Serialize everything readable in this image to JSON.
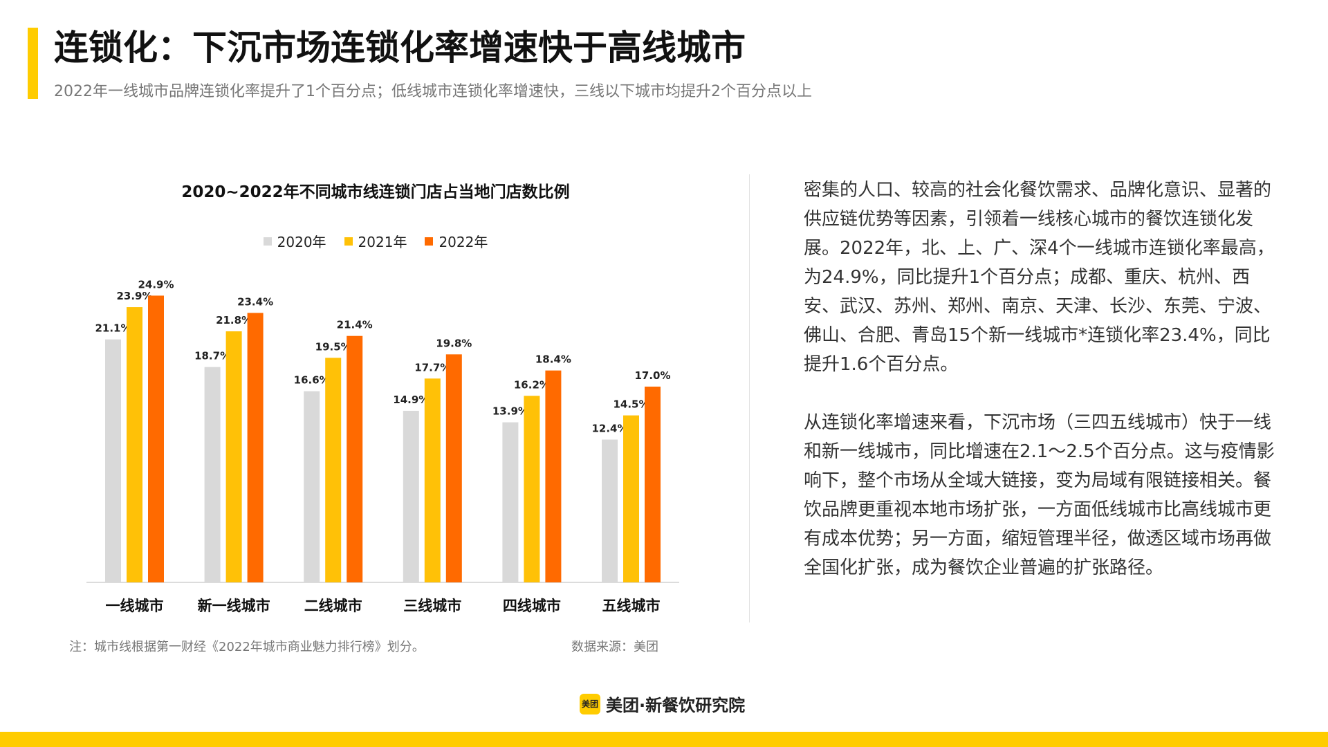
{
  "header": {
    "title": "连锁化：下沉市场连锁化率增速快于高线城市",
    "subtitle": "2022年一线城市品牌连锁化率提升了1个百分点；低线城市连锁化率增速快，三线以下城市均提升2个百分点以上"
  },
  "colors": {
    "accent": "#FFCC00",
    "series_2020": "#D9D9D9",
    "series_2021": "#FFC107",
    "series_2022": "#FF6A00"
  },
  "chart_data": {
    "type": "bar",
    "title": "2020~2022年不同城市线连锁门店占当地门店数比例",
    "categories": [
      "一线城市",
      "新一线城市",
      "二线城市",
      "三线城市",
      "四线城市",
      "五线城市"
    ],
    "series": [
      {
        "name": "2020年",
        "values": [
          21.1,
          18.7,
          16.6,
          14.9,
          13.9,
          12.4
        ],
        "labels": [
          "21.1%",
          "18.7%",
          "16.6%",
          "14.9%",
          "13.9%",
          "12.4%"
        ]
      },
      {
        "name": "2021年",
        "values": [
          23.9,
          21.8,
          19.5,
          17.7,
          16.2,
          14.5
        ],
        "labels": [
          "23.9%",
          "21.8%",
          "19.5%",
          "17.7%",
          "16.2%",
          "14.5%"
        ]
      },
      {
        "name": "2022年",
        "values": [
          24.9,
          23.4,
          21.4,
          19.8,
          18.4,
          17.0
        ],
        "labels": [
          "24.9%",
          "23.4%",
          "21.4%",
          "19.8%",
          "18.4%",
          "17.0%"
        ]
      }
    ],
    "ylim": [
      0,
      25
    ],
    "legend": "top-center",
    "grid": false
  },
  "side_text": {
    "p1": "密集的人口、较高的社会化餐饮需求、品牌化意识、显著的供应链优势等因素，引领着一线核心城市的餐饮连锁化发展。2022年，北、上、广、深4个一线城市连锁化率最高，为24.9%，同比提升1个百分点；成都、重庆、杭州、西安、武汉、苏州、郑州、南京、天津、长沙、东莞、宁波、佛山、合肥、青岛15个新一线城市*连锁化率23.4%，同比提升1.6个百分点。",
    "p2": "从连锁化率增速来看，下沉市场（三四五线城市）快于一线和新一线城市，同比增速在2.1～2.5个百分点。这与疫情影响下，整个市场从全域大链接，变为局域有限链接相关。餐饮品牌更重视本地市场扩张，一方面低线城市比高线城市更有成本优势；另一方面，缩短管理半径，做透区域市场再做全国化扩张，成为餐饮企业普遍的扩张路径。"
  },
  "footer": {
    "note": "注：城市线根据第一财经《2022年城市商业魅力排行榜》划分。",
    "source": "数据来源：美团",
    "brand_logo_text": "美团",
    "brand_text": "美团·新餐饮研究院"
  }
}
